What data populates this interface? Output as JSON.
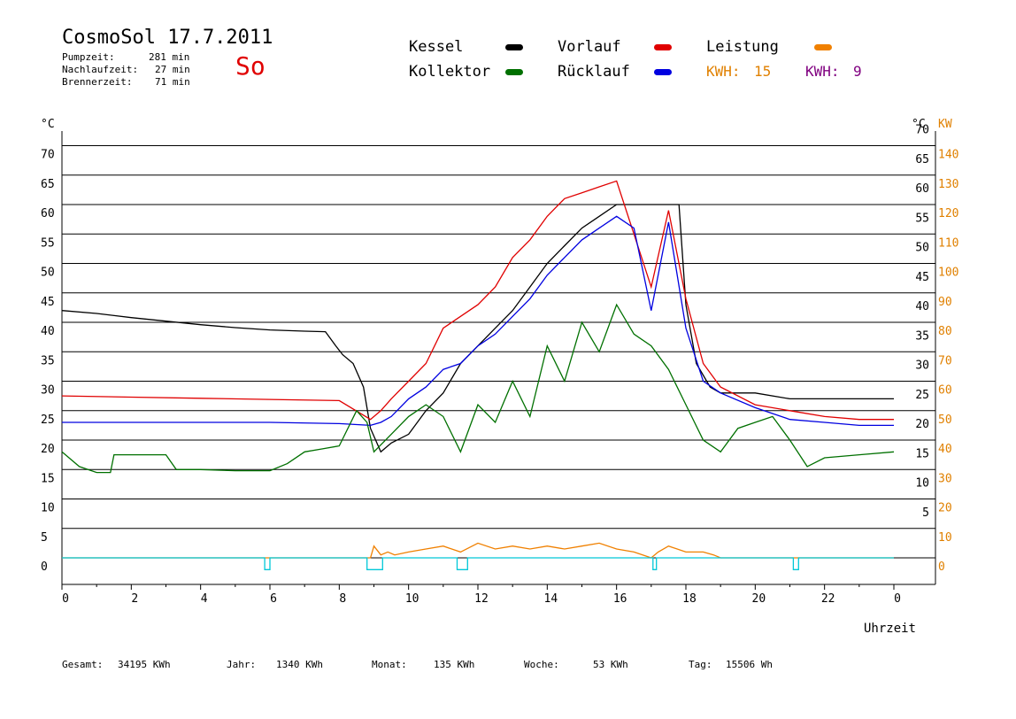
{
  "header": {
    "title": "CosmoSol 17.7.2011",
    "pumpzeit_label": "Pumpzeit:",
    "pumpzeit_value": "281 min",
    "nachlaufzeit_label": "Nachlaufzeit:",
    "nachlaufzeit_value": "27 min",
    "brennerzeit_label": "Brennerzeit:",
    "brennerzeit_value": "71 min",
    "weekday": "So"
  },
  "legend": {
    "items": [
      {
        "label": "Kessel",
        "color": "#000000"
      },
      {
        "label": "Vorlauf",
        "color": "#e00000"
      },
      {
        "label": "Leistung",
        "color": "#f08000"
      },
      {
        "label": "Kollektor",
        "color": "#007000"
      },
      {
        "label": "Rücklauf",
        "color": "#0000e0"
      }
    ],
    "kwh1_label": "KWH:",
    "kwh1_value": "15",
    "kwh1_color": "#e08000",
    "kwh2_label": "KWH:",
    "kwh2_value": "9",
    "kwh2_color": "#800080"
  },
  "footer": {
    "gesamt_label": "Gesamt:",
    "gesamt_value": "34195 KWh",
    "jahr_label": "Jahr:",
    "jahr_value": "1340 KWh",
    "monat_label": "Monat:",
    "monat_value": "135 KWh",
    "woche_label": "Woche:",
    "woche_value": "53 KWh",
    "tag_label": "Tag:",
    "tag_value": "15506 Wh"
  },
  "chart_data": {
    "type": "line",
    "title": "CosmoSol 17.7.2011",
    "xlabel": "Uhrzeit",
    "ylabel_left": "°C",
    "ylabel_right_unit1": "°C",
    "ylabel_right_unit2": "KW",
    "xlim": [
      0,
      24
    ],
    "ylim": [
      -4.5,
      72
    ],
    "x_ticks": [
      "0",
      "2",
      "4",
      "6",
      "8",
      "10",
      "12",
      "14",
      "16",
      "18",
      "20",
      "22",
      "0"
    ],
    "y_ticks_left": [
      0,
      5,
      10,
      15,
      20,
      25,
      30,
      35,
      40,
      45,
      50,
      55,
      60,
      65,
      70
    ],
    "y_ticks_right_c": [
      5,
      10,
      15,
      20,
      25,
      30,
      35,
      40,
      45,
      50,
      55,
      60,
      65,
      70
    ],
    "y_ticks_right_kw": [
      0,
      10,
      20,
      30,
      40,
      50,
      60,
      70,
      80,
      90,
      100,
      110,
      120,
      130,
      140
    ],
    "grid": true,
    "series": [
      {
        "name": "Kessel",
        "color": "#000000",
        "x": [
          0,
          1,
          2,
          3,
          4,
          5,
          6,
          7,
          7.6,
          7.9,
          8.1,
          8.4,
          8.7,
          8.9,
          9.2,
          9.5,
          10,
          10.5,
          11,
          11.5,
          12,
          12.5,
          13,
          13.5,
          14,
          14.5,
          15,
          15.5,
          16,
          16.2,
          16.4,
          17.5,
          17.8,
          18,
          18.3,
          18.7,
          19,
          20,
          21,
          22,
          23,
          24
        ],
        "y": [
          42,
          41.5,
          40.8,
          40.2,
          39.6,
          39.1,
          38.7,
          38.5,
          38.4,
          36,
          34.5,
          33,
          29,
          22,
          18,
          19.5,
          21,
          25,
          28,
          33,
          36,
          39,
          42,
          46,
          50,
          53,
          56,
          58,
          60,
          60,
          60,
          60,
          60,
          43,
          33,
          29,
          28,
          28,
          27,
          27,
          27,
          27
        ]
      },
      {
        "name": "Vorlauf",
        "color": "#e00000",
        "x": [
          0,
          2,
          4,
          6,
          8,
          8.9,
          9.2,
          9.5,
          10,
          10.5,
          11,
          11.5,
          12,
          12.5,
          13,
          13.5,
          14,
          14.5,
          15,
          15.5,
          16,
          16.5,
          17,
          17.5,
          18,
          18.5,
          19,
          20,
          21,
          22,
          23,
          24
        ],
        "y": [
          27.5,
          27.3,
          27.1,
          26.9,
          26.7,
          23.5,
          25,
          27,
          30,
          33,
          39,
          41,
          43,
          46,
          51,
          54,
          58,
          61,
          62,
          63,
          64,
          55,
          46,
          59,
          44,
          33,
          29,
          26,
          25,
          24,
          23.5,
          23.5
        ]
      },
      {
        "name": "Rücklauf",
        "color": "#0000e0",
        "x": [
          0,
          2,
          4,
          6,
          8,
          8.9,
          9.2,
          9.5,
          10,
          10.5,
          11,
          11.5,
          12,
          12.5,
          13,
          13.5,
          14,
          14.5,
          15,
          15.5,
          16,
          16.5,
          17,
          17.5,
          18,
          18.5,
          19,
          20,
          21,
          22,
          23,
          24
        ],
        "y": [
          23,
          23,
          23,
          23,
          22.8,
          22.5,
          23,
          24,
          27,
          29,
          32,
          33,
          36,
          38,
          41,
          44,
          48,
          51,
          54,
          56,
          58,
          56,
          42,
          57,
          39,
          30,
          28,
          25.5,
          23.5,
          23,
          22.5,
          22.5
        ]
      },
      {
        "name": "Kollektor",
        "color": "#007000",
        "x": [
          0,
          0.5,
          1,
          1.4,
          1.5,
          2,
          3,
          3.3,
          4,
          5,
          6,
          6.5,
          7,
          7.5,
          8,
          8.5,
          8.8,
          9,
          9.5,
          10,
          10.5,
          11,
          11.5,
          12,
          12.5,
          13,
          13.5,
          14,
          14.5,
          15,
          15.5,
          16,
          16.5,
          17,
          17.5,
          18,
          18.5,
          19,
          19.5,
          20,
          20.5,
          21,
          21.5,
          22,
          23,
          24
        ],
        "y": [
          18,
          15.5,
          14.5,
          14.5,
          17.5,
          17.5,
          17.5,
          15,
          15,
          14.8,
          14.8,
          16,
          18,
          18.5,
          19,
          25,
          23,
          18,
          21,
          24,
          26,
          24,
          18,
          26,
          23,
          30,
          24,
          36,
          30,
          40,
          35,
          43,
          38,
          36,
          32,
          26,
          20,
          18,
          22,
          23,
          24,
          20,
          15.5,
          17,
          17.5,
          18
        ]
      },
      {
        "name": "Leistung",
        "color": "#f08000",
        "x": [
          0,
          8.9,
          9,
          9.2,
          9.4,
          9.6,
          10,
          10.5,
          11,
          11.5,
          12,
          12.5,
          13,
          13.5,
          14,
          14.5,
          15,
          15.5,
          16,
          16.5,
          17,
          17.2,
          17.5,
          18,
          18.5,
          18.8,
          19,
          20,
          21,
          22,
          23,
          24
        ],
        "y": [
          0,
          0,
          2,
          0.5,
          1,
          0.5,
          1,
          1.5,
          2,
          1,
          2.5,
          1.5,
          2,
          1.5,
          2,
          1.5,
          2,
          2.5,
          1.5,
          1,
          0,
          1,
          2,
          1,
          1,
          0.5,
          0,
          0,
          0,
          0,
          0,
          0
        ]
      },
      {
        "name": "Pumpe",
        "color": "#00c8d8",
        "x": [
          0,
          5.85,
          5.85,
          6.0,
          6.0,
          8.8,
          8.8,
          9.25,
          9.25,
          11.4,
          11.4,
          11.7,
          11.7,
          17.05,
          17.05,
          17.15,
          17.15,
          21.1,
          21.1,
          21.25,
          21.25,
          24
        ],
        "y": [
          0,
          0,
          -2,
          -2,
          0,
          0,
          -2,
          -2,
          0,
          0,
          -2,
          -2,
          0,
          0,
          -2,
          -2,
          0,
          0,
          -2,
          -2,
          0,
          0
        ]
      }
    ]
  }
}
